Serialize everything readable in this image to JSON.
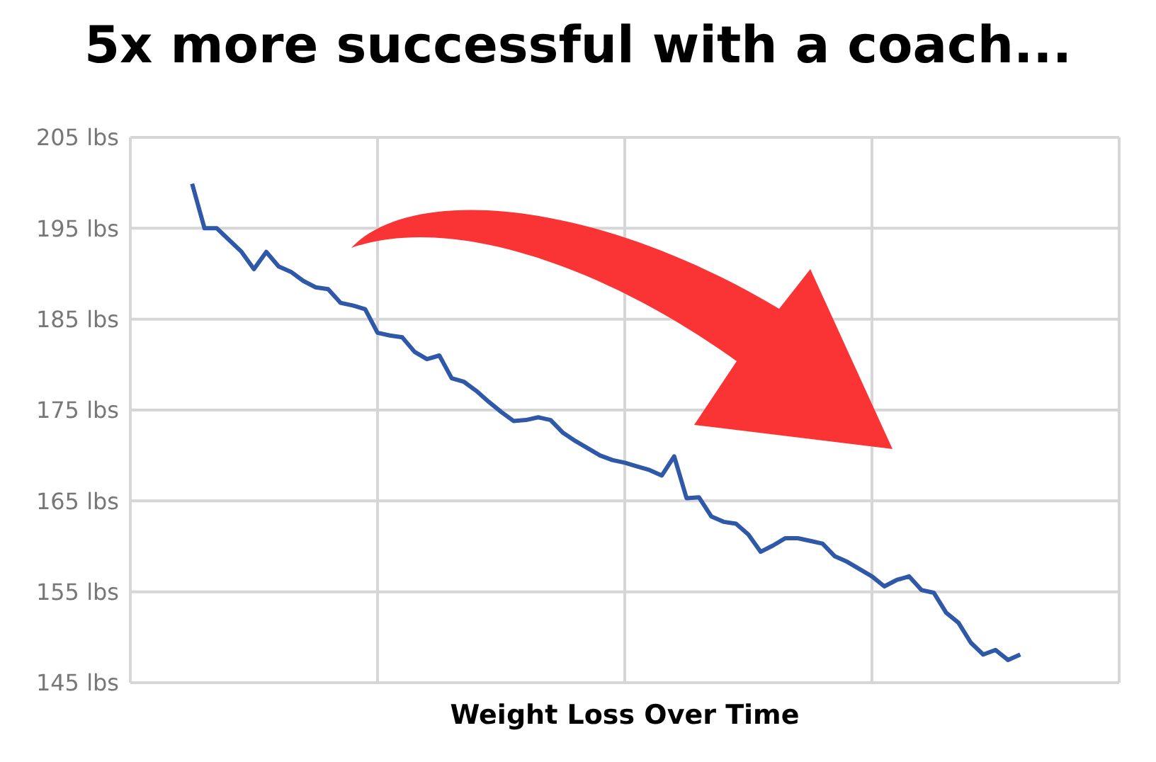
{
  "chart_data": {
    "type": "line",
    "title": "5x more successful with a coach...",
    "xlabel": "Weight Loss Over Time",
    "categories": [
      null,
      null,
      null,
      null,
      null,
      null,
      null,
      null,
      null,
      null,
      null,
      null,
      null,
      null,
      null,
      null,
      null,
      null,
      null,
      null,
      null,
      null,
      null,
      null,
      null,
      null,
      null,
      null,
      null,
      null,
      null,
      null,
      null,
      null,
      null,
      null,
      null,
      null,
      null,
      null,
      null,
      null,
      null,
      null,
      null,
      null,
      null,
      null,
      null,
      null,
      null,
      null,
      null,
      null,
      null,
      null,
      null,
      null,
      null,
      null,
      null,
      null,
      null,
      null,
      null,
      null,
      null,
      null,
      null,
      null,
      null,
      null,
      null,
      null,
      null,
      null,
      null,
      null,
      null,
      null,
      null
    ],
    "series": [
      {
        "color": "#2f58a8",
        "values": [
          null,
          null,
          null,
          null,
          null,
          199.9,
          195.0,
          195.0,
          193.7,
          192.4,
          190.5,
          192.4,
          190.8,
          190.2,
          189.2,
          188.5,
          188.3,
          186.8,
          186.5,
          186.1,
          183.5,
          183.2,
          183.0,
          181.4,
          180.6,
          181.0,
          178.5,
          178.1,
          177.1,
          175.9,
          174.8,
          173.8,
          173.9,
          174.2,
          173.9,
          172.5,
          171.6,
          170.8,
          170.0,
          169.5,
          169.2,
          168.8,
          168.4,
          167.8,
          169.9,
          165.3,
          165.4,
          163.3,
          162.7,
          162.5,
          161.3,
          159.4,
          160.1,
          160.9,
          160.9,
          160.6,
          160.3,
          158.9,
          158.3,
          157.5,
          156.7,
          155.6,
          156.3,
          156.7,
          155.2,
          154.9,
          152.7,
          151.6,
          149.4,
          148.1,
          148.6,
          147.5,
          148.1,
          null,
          null,
          null,
          null,
          null,
          null,
          null,
          null
        ]
      }
    ],
    "ylim": [
      145,
      205
    ],
    "yticks": [
      {
        "value": 145,
        "label": "145 lbs"
      },
      {
        "value": 155,
        "label": "155 lbs"
      },
      {
        "value": 165,
        "label": "165 lbs"
      },
      {
        "value": 175,
        "label": "175 lbs"
      },
      {
        "value": 185,
        "label": "185 lbs"
      },
      {
        "value": 195,
        "label": "195 lbs"
      },
      {
        "value": 205,
        "label": "205 lbs"
      }
    ],
    "tick_labels": "y",
    "grid": true,
    "marker": "none",
    "line_style": "solid"
  }
}
